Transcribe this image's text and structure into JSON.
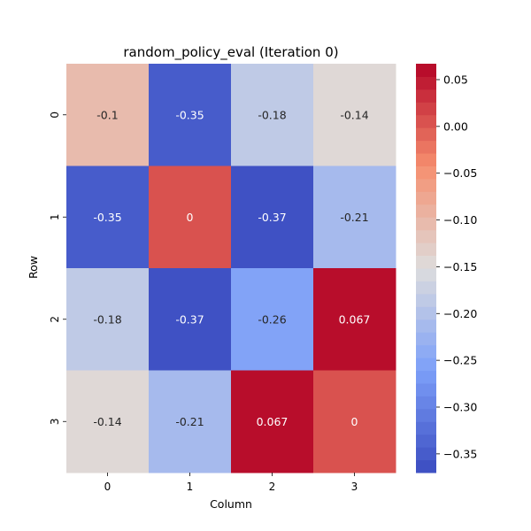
{
  "chart_data": {
    "type": "heatmap",
    "title": "random_policy_eval (Iteration 0)",
    "xlabel": "Column",
    "ylabel": "Row",
    "x_categories": [
      "0",
      "1",
      "2",
      "3"
    ],
    "y_categories": [
      "0",
      "1",
      "2",
      "3"
    ],
    "values": [
      [
        -0.1,
        -0.35,
        -0.18,
        -0.14
      ],
      [
        -0.35,
        0,
        -0.37,
        -0.21
      ],
      [
        -0.18,
        -0.37,
        -0.26,
        0.067
      ],
      [
        -0.14,
        -0.21,
        0.067,
        0
      ]
    ],
    "cell_labels": [
      [
        "-0.1",
        "-0.35",
        "-0.18",
        "-0.14"
      ],
      [
        "-0.35",
        "0",
        "-0.37",
        "-0.21"
      ],
      [
        "-0.18",
        "-0.37",
        "-0.26",
        "0.067"
      ],
      [
        "-0.14",
        "-0.21",
        "0.067",
        "0"
      ]
    ],
    "colormap": "coolwarm",
    "vmin": -0.37,
    "vmax": 0.067,
    "colorbar_levels": 32,
    "colorbar_ticks": [
      0.05,
      0.0,
      -0.05,
      -0.1,
      -0.15,
      -0.2,
      -0.25,
      -0.3,
      -0.35
    ],
    "colorbar_tick_labels": [
      "0.05",
      "0.00",
      "−0.05",
      "−0.10",
      "−0.15",
      "−0.20",
      "−0.25",
      "−0.30",
      "−0.35"
    ]
  }
}
